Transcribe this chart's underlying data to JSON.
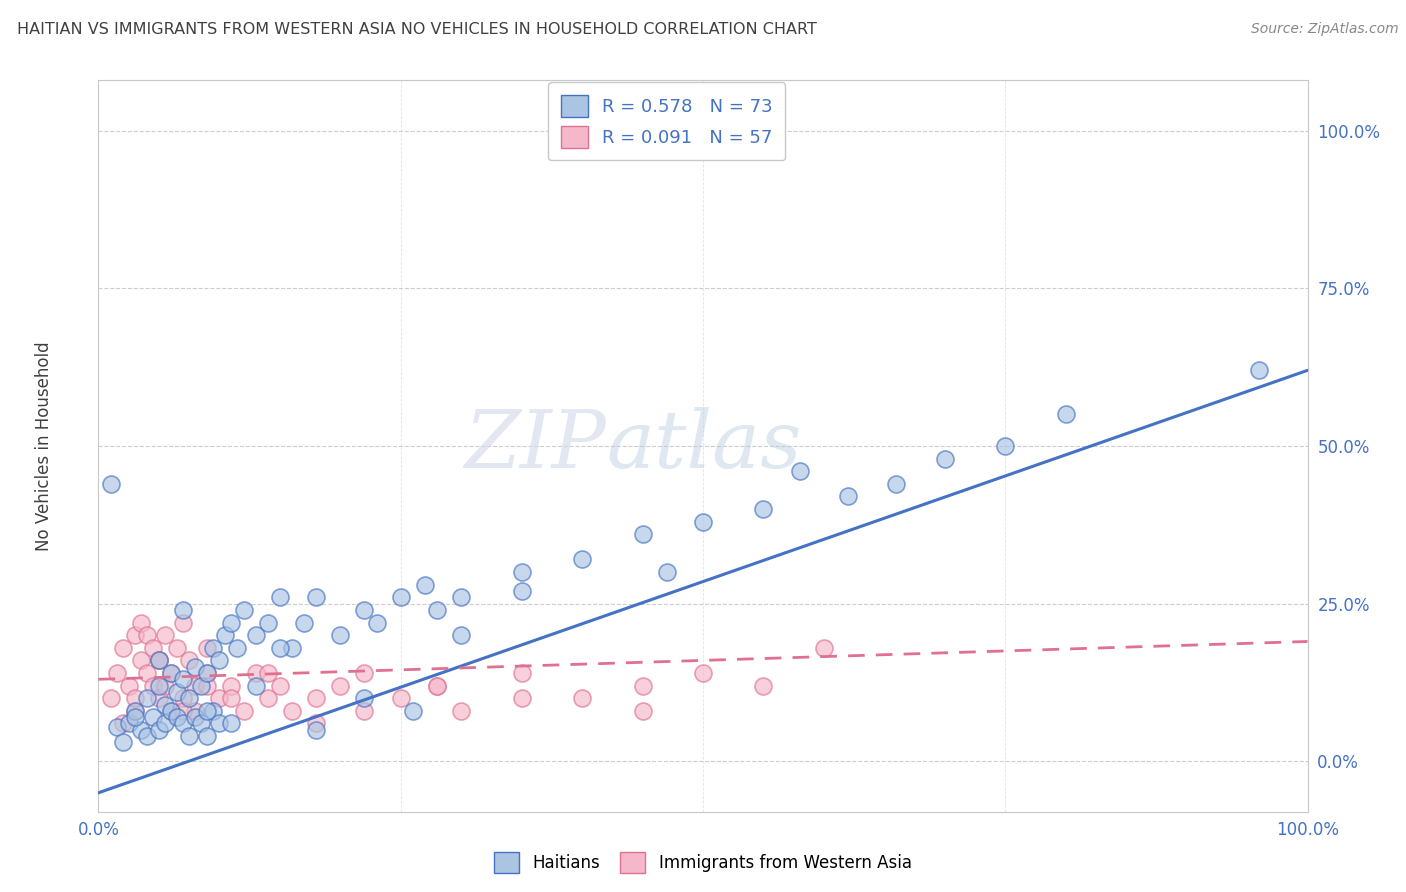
{
  "title": "HAITIAN VS IMMIGRANTS FROM WESTERN ASIA NO VEHICLES IN HOUSEHOLD CORRELATION CHART",
  "source": "Source: ZipAtlas.com",
  "ylabel": "No Vehicles in Household",
  "legend_r1": "R = 0.578",
  "legend_n1": "N = 73",
  "legend_r2": "R = 0.091",
  "legend_n2": "N = 57",
  "legend_label1": "Haitians",
  "legend_label2": "Immigrants from Western Asia",
  "watermark_zip": "ZIP",
  "watermark_atlas": "atlas",
  "blue_color": "#aac4e2",
  "pink_color": "#f5b8ca",
  "blue_line_color": "#4472c4",
  "pink_line_color": "#e07090",
  "title_color": "#404040",
  "axis_label_color": "#4472c4",
  "grid_color": "#c8c8c8",
  "blue_scatter_x": [
    1.5,
    2.0,
    2.5,
    3.0,
    3.5,
    4.0,
    4.0,
    4.5,
    5.0,
    5.0,
    5.5,
    5.5,
    6.0,
    6.0,
    6.5,
    6.5,
    7.0,
    7.0,
    7.5,
    7.5,
    8.0,
    8.0,
    8.5,
    8.5,
    9.0,
    9.0,
    9.5,
    9.5,
    10.0,
    10.0,
    10.5,
    11.0,
    11.5,
    12.0,
    13.0,
    14.0,
    15.0,
    16.0,
    17.0,
    18.0,
    20.0,
    22.0,
    23.0,
    25.0,
    27.0,
    28.0,
    30.0,
    35.0,
    40.0,
    45.0,
    47.0,
    50.0,
    55.0,
    58.0,
    62.0,
    66.0,
    70.0,
    75.0,
    80.0,
    96.0,
    1.0,
    3.0,
    5.0,
    7.0,
    9.0,
    11.0,
    13.0,
    15.0,
    18.0,
    22.0,
    26.0,
    30.0,
    35.0
  ],
  "blue_scatter_y": [
    5.5,
    3.0,
    6.0,
    8.0,
    5.0,
    10.0,
    4.0,
    7.0,
    12.0,
    5.0,
    9.0,
    6.0,
    8.0,
    14.0,
    7.0,
    11.0,
    6.0,
    13.0,
    10.0,
    4.0,
    15.0,
    7.0,
    12.0,
    6.0,
    14.0,
    4.0,
    18.0,
    8.0,
    16.0,
    6.0,
    20.0,
    22.0,
    18.0,
    24.0,
    20.0,
    22.0,
    26.0,
    18.0,
    22.0,
    26.0,
    20.0,
    24.0,
    22.0,
    26.0,
    28.0,
    24.0,
    26.0,
    30.0,
    32.0,
    36.0,
    30.0,
    38.0,
    40.0,
    46.0,
    42.0,
    44.0,
    48.0,
    50.0,
    55.0,
    62.0,
    44.0,
    7.0,
    16.0,
    24.0,
    8.0,
    6.0,
    12.0,
    18.0,
    5.0,
    10.0,
    8.0,
    20.0,
    27.0
  ],
  "pink_scatter_x": [
    1.0,
    1.5,
    2.0,
    2.5,
    3.0,
    3.0,
    3.5,
    3.5,
    4.0,
    4.0,
    4.5,
    4.5,
    5.0,
    5.0,
    5.5,
    5.5,
    6.0,
    6.0,
    6.5,
    7.0,
    7.0,
    7.5,
    8.0,
    8.0,
    9.0,
    9.0,
    10.0,
    11.0,
    12.0,
    13.0,
    14.0,
    15.0,
    16.0,
    18.0,
    20.0,
    22.0,
    25.0,
    28.0,
    30.0,
    35.0,
    40.0,
    45.0,
    50.0,
    55.0,
    60.0,
    2.0,
    3.0,
    5.0,
    7.0,
    9.0,
    11.0,
    14.0,
    18.0,
    22.0,
    28.0,
    35.0,
    45.0
  ],
  "pink_scatter_y": [
    10.0,
    14.0,
    18.0,
    12.0,
    20.0,
    8.0,
    16.0,
    22.0,
    14.0,
    20.0,
    12.0,
    18.0,
    10.0,
    16.0,
    12.0,
    20.0,
    8.0,
    14.0,
    18.0,
    10.0,
    22.0,
    16.0,
    12.0,
    8.0,
    14.0,
    18.0,
    10.0,
    12.0,
    8.0,
    14.0,
    10.0,
    12.0,
    8.0,
    10.0,
    12.0,
    14.0,
    10.0,
    12.0,
    8.0,
    14.0,
    10.0,
    12.0,
    14.0,
    12.0,
    18.0,
    6.0,
    10.0,
    16.0,
    8.0,
    12.0,
    10.0,
    14.0,
    6.0,
    8.0,
    12.0,
    10.0,
    8.0
  ],
  "blue_line_x0": 0,
  "blue_line_x1": 100,
  "blue_line_y0": -5,
  "blue_line_y1": 62,
  "pink_line_x0": 0,
  "pink_line_x1": 100,
  "pink_line_y0": 13,
  "pink_line_y1": 19,
  "xlim": [
    0,
    100
  ],
  "ylim": [
    -8,
    108
  ],
  "yticks": [
    0,
    25,
    50,
    75,
    100
  ],
  "ytick_labels": [
    "0.0%",
    "25.0%",
    "50.0%",
    "75.0%",
    "100.0%"
  ],
  "xtick_vals": [
    0,
    25,
    50,
    75,
    100
  ],
  "xtick_labels": [
    "0.0%",
    "",
    "",
    "",
    "100.0%"
  ],
  "figsize": [
    14.06,
    8.92
  ],
  "dpi": 100
}
